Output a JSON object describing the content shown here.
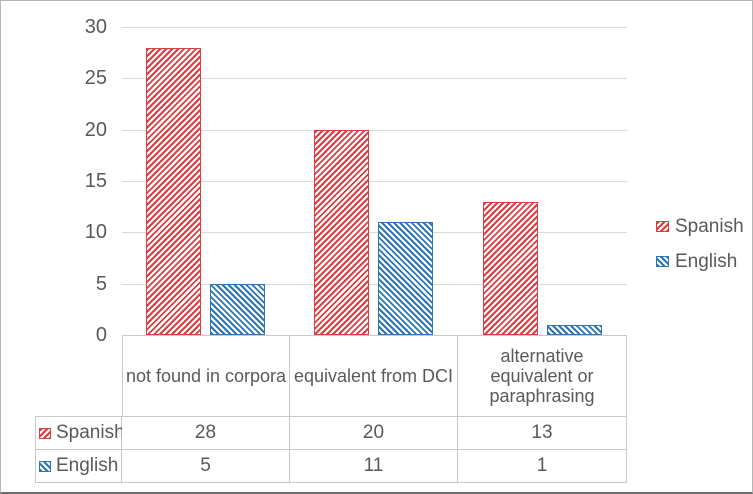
{
  "chart_data": {
    "type": "bar",
    "title": "",
    "categories": [
      "not found in corpora",
      "equivalent from DCI",
      "alternative equivalent or paraphrasing"
    ],
    "series": [
      {
        "name": "Spanish",
        "values": [
          28,
          20,
          13
        ],
        "color": "#dd3c40",
        "pattern": "diagonal-up-hatch"
      },
      {
        "name": "English",
        "values": [
          5,
          11,
          1
        ],
        "color": "#2e75b6",
        "pattern": "diagonal-down-hatch"
      }
    ],
    "ylim": [
      0,
      30
    ],
    "yticks": [
      0,
      5,
      10,
      15,
      20,
      25,
      30
    ],
    "xlabel": "",
    "ylabel": "",
    "grid": true,
    "legend_position": "right",
    "data_table_shown": true
  },
  "colors": {
    "text": "#595959",
    "gridline": "#d9d9d9",
    "table_border": "#c9c9c9",
    "background": "#ffffff"
  }
}
